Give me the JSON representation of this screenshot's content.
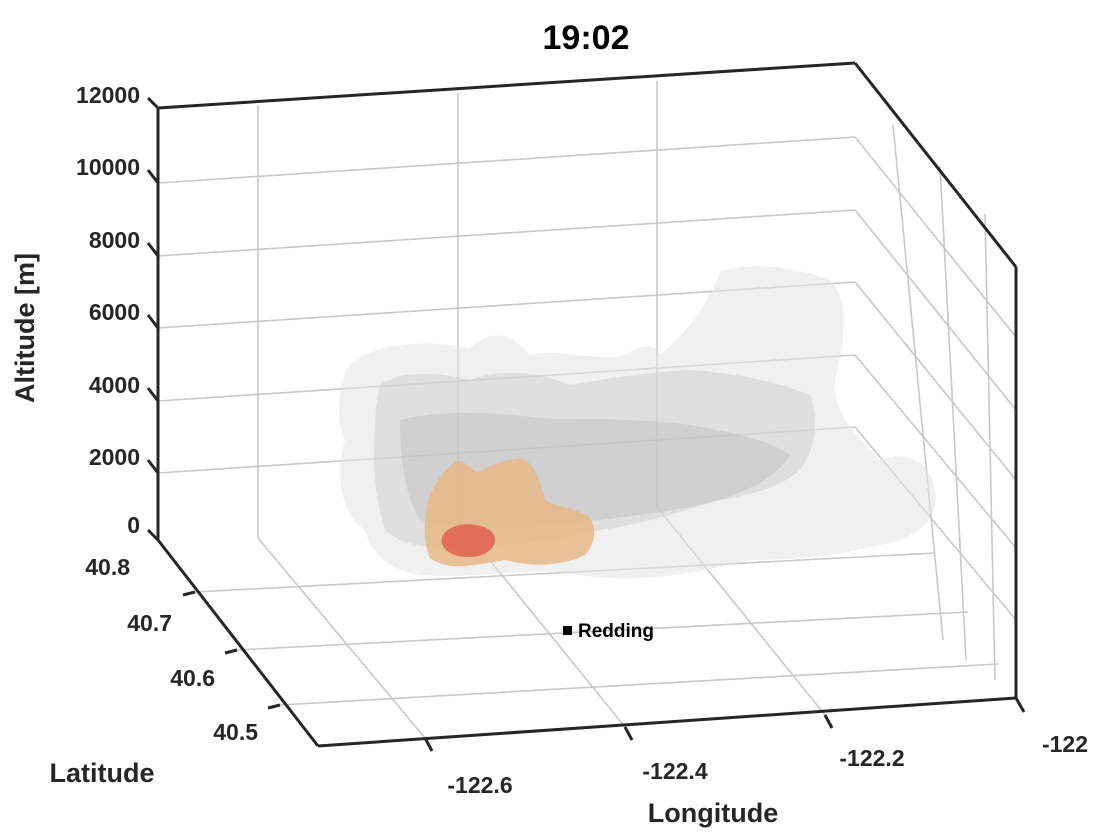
{
  "chart_data": {
    "type": "3d-isosurface",
    "title": "19:02",
    "xlabel": "Longitude",
    "ylabel": "Latitude",
    "zlabel": "Altitude [m]",
    "x_ticks": [
      "-122.6",
      "-122.4",
      "-122.2",
      "-122"
    ],
    "y_ticks": [
      "40.8",
      "40.7",
      "40.6",
      "40.5"
    ],
    "z_ticks": [
      "12000",
      "10000",
      "8000",
      "6000",
      "4000",
      "2000",
      "0"
    ],
    "xlim": [
      -122.7,
      -122.0
    ],
    "ylim": [
      40.45,
      40.8
    ],
    "zlim": [
      0,
      12000
    ],
    "grid": true,
    "isosurfaces": [
      {
        "level": "outer",
        "color": "#e3e3e3",
        "opacity": 0.55
      },
      {
        "level": "middle",
        "color": "#c9c9c9",
        "opacity": 0.45
      },
      {
        "level": "inner",
        "color": "#b8b8b8",
        "opacity": 0.4
      },
      {
        "level": "high",
        "color": "#e8b98a",
        "opacity": 0.85
      },
      {
        "level": "peak",
        "color": "#e0604f",
        "opacity": 0.85
      }
    ],
    "annotations": [
      {
        "label": "Redding",
        "marker": "square"
      }
    ]
  }
}
